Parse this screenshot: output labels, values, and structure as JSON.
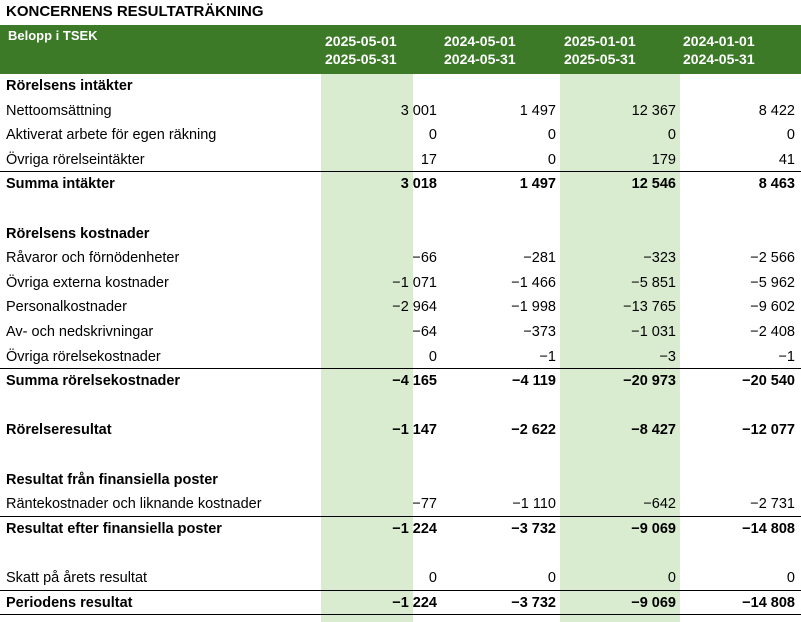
{
  "title": "KONCERNENS RESULTATRÄKNING",
  "header": {
    "unit": "Belopp i TSEK",
    "columns": [
      {
        "from": "2025-05-01",
        "to": "2025-05-31"
      },
      {
        "from": "2024-05-01",
        "to": "2024-05-31"
      },
      {
        "from": "2025-01-01",
        "to": "2025-05-31"
      },
      {
        "from": "2024-01-01",
        "to": "2024-05-31"
      }
    ]
  },
  "rows": [
    {
      "label": "Rörelsens intäkter",
      "type": "section",
      "values": [
        "",
        "",
        "",
        ""
      ]
    },
    {
      "label": "Nettoomsättning",
      "type": "item",
      "values": [
        "3 001",
        "1 497",
        "12 367",
        "8 422"
      ]
    },
    {
      "label": "Aktiverat arbete för egen räkning",
      "type": "item",
      "values": [
        "0",
        "0",
        "0",
        "0"
      ]
    },
    {
      "label": "Övriga rörelseintäkter",
      "type": "item",
      "values": [
        "17",
        "0",
        "179",
        "41"
      ]
    },
    {
      "label": "Summa intäkter",
      "type": "total",
      "values": [
        "3 018",
        "1 497",
        "12 546",
        "8 463"
      ]
    },
    {
      "label": "",
      "type": "blank",
      "values": [
        "",
        "",
        "",
        ""
      ]
    },
    {
      "label": "Rörelsens kostnader",
      "type": "section",
      "values": [
        "",
        "",
        "",
        ""
      ]
    },
    {
      "label": "Råvaror och förnödenheter",
      "type": "item",
      "values": [
        "−66",
        "−281",
        "−323",
        "−2 566"
      ]
    },
    {
      "label": "Övriga externa kostnader",
      "type": "item",
      "values": [
        "−1 071",
        "−1 466",
        "−5 851",
        "−5 962"
      ]
    },
    {
      "label": "Personalkostnader",
      "type": "item",
      "values": [
        "−2 964",
        "−1 998",
        "−13 765",
        "−9 602"
      ]
    },
    {
      "label": "Av- och nedskrivningar",
      "type": "item",
      "values": [
        "−64",
        "−373",
        "−1 031",
        "−2 408"
      ]
    },
    {
      "label": "Övriga rörelsekostnader",
      "type": "item",
      "values": [
        "0",
        "−1",
        "−3",
        "−1"
      ]
    },
    {
      "label": "Summa rörelsekostnader",
      "type": "total",
      "values": [
        "−4 165",
        "−4 119",
        "−20 973",
        "−20 540"
      ]
    },
    {
      "label": "",
      "type": "blank",
      "values": [
        "",
        "",
        "",
        ""
      ]
    },
    {
      "label": "Rörelseresultat",
      "type": "boldrow",
      "values": [
        "−1 147",
        "−2 622",
        "−8 427",
        "−12 077"
      ]
    },
    {
      "label": "",
      "type": "blank",
      "values": [
        "",
        "",
        "",
        ""
      ]
    },
    {
      "label": "Resultat från finansiella poster",
      "type": "section",
      "values": [
        "",
        "",
        "",
        ""
      ]
    },
    {
      "label": "Räntekostnader och liknande kostnader",
      "type": "item",
      "values": [
        "−77",
        "−1 110",
        "−642",
        "−2 731"
      ]
    },
    {
      "label": "Resultat efter finansiella poster",
      "type": "total",
      "values": [
        "−1 224",
        "−3 732",
        "−9 069",
        "−14 808"
      ]
    },
    {
      "label": "",
      "type": "blank",
      "values": [
        "",
        "",
        "",
        ""
      ]
    },
    {
      "label": "Skatt på årets resultat",
      "type": "item",
      "values": [
        "0",
        "0",
        "0",
        "0"
      ]
    },
    {
      "label": "Periodens resultat",
      "type": "total",
      "values": [
        "−1 224",
        "−3 732",
        "−9 069",
        "−14 808"
      ]
    }
  ]
}
